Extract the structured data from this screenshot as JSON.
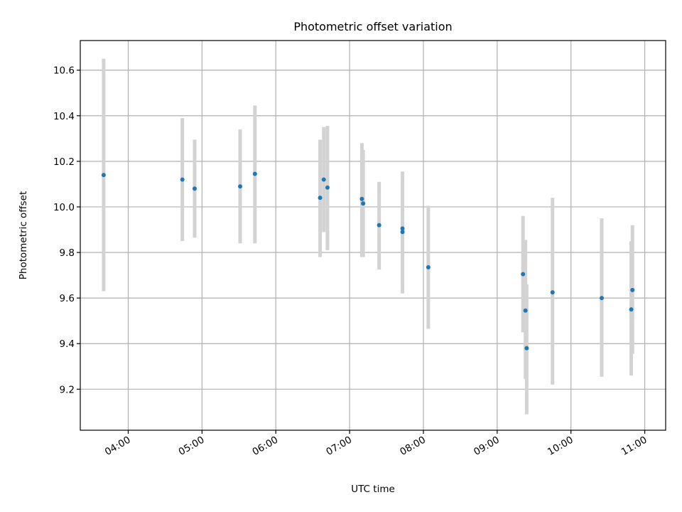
{
  "chart_data": {
    "type": "scatter",
    "title": "Photometric offset variation",
    "xlabel": "UTC time",
    "ylabel": "Photometric offset",
    "x_unit": "UTC time of day",
    "xlim": [
      "03:21",
      "11:17"
    ],
    "ylim": [
      9.02,
      10.73
    ],
    "x_ticks": [
      "04:00",
      "05:00",
      "06:00",
      "07:00",
      "08:00",
      "09:00",
      "10:00",
      "11:00"
    ],
    "y_ticks": [
      9.2,
      9.4,
      9.6,
      9.8,
      10.0,
      10.2,
      10.4,
      10.6
    ],
    "y_tick_labels": [
      "9.2",
      "9.4",
      "9.6",
      "9.8",
      "10.0",
      "10.2",
      "10.4",
      "10.6"
    ],
    "grid": true,
    "colors": {
      "marker": "#1f77b4",
      "errorbar": "#d3d3d3",
      "grid": "#b0b0b0"
    },
    "series": [
      {
        "marker": "point",
        "error_bars": "vertical",
        "points": [
          {
            "x": "03:40",
            "y": 10.14,
            "ylo": 9.63,
            "yhi": 10.65
          },
          {
            "x": "04:44",
            "y": 10.12,
            "ylo": 9.85,
            "yhi": 10.39
          },
          {
            "x": "04:54",
            "y": 10.08,
            "ylo": 9.865,
            "yhi": 10.295
          },
          {
            "x": "05:31",
            "y": 10.09,
            "ylo": 9.84,
            "yhi": 10.34
          },
          {
            "x": "05:43",
            "y": 10.145,
            "ylo": 9.84,
            "yhi": 10.445
          },
          {
            "x": "06:36",
            "y": 10.04,
            "ylo": 9.78,
            "yhi": 10.295
          },
          {
            "x": "06:39",
            "y": 10.12,
            "ylo": 9.89,
            "yhi": 10.35
          },
          {
            "x": "06:42",
            "y": 10.085,
            "ylo": 9.81,
            "yhi": 10.355
          },
          {
            "x": "07:10",
            "y": 10.035,
            "ylo": 9.78,
            "yhi": 10.28
          },
          {
            "x": "07:11",
            "y": 10.015,
            "ylo": 9.78,
            "yhi": 10.25
          },
          {
            "x": "07:24",
            "y": 9.92,
            "ylo": 9.725,
            "yhi": 10.11
          },
          {
            "x": "07:43",
            "y": 9.905,
            "ylo": 9.65,
            "yhi": 10.155
          },
          {
            "x": "07:43",
            "y": 9.89,
            "ylo": 9.62,
            "yhi": 10.12
          },
          {
            "x": "08:04",
            "y": 9.735,
            "ylo": 9.465,
            "yhi": 10.005
          },
          {
            "x": "09:21",
            "y": 9.705,
            "ylo": 9.45,
            "yhi": 9.96
          },
          {
            "x": "09:23",
            "y": 9.545,
            "ylo": 9.245,
            "yhi": 9.855
          },
          {
            "x": "09:24",
            "y": 9.38,
            "ylo": 9.09,
            "yhi": 9.66
          },
          {
            "x": "09:45",
            "y": 9.625,
            "ylo": 9.22,
            "yhi": 10.04
          },
          {
            "x": "10:25",
            "y": 9.6,
            "ylo": 9.255,
            "yhi": 9.95
          },
          {
            "x": "10:49",
            "y": 9.55,
            "ylo": 9.26,
            "yhi": 9.85
          },
          {
            "x": "10:50",
            "y": 9.635,
            "ylo": 9.355,
            "yhi": 9.92
          }
        ]
      }
    ]
  }
}
